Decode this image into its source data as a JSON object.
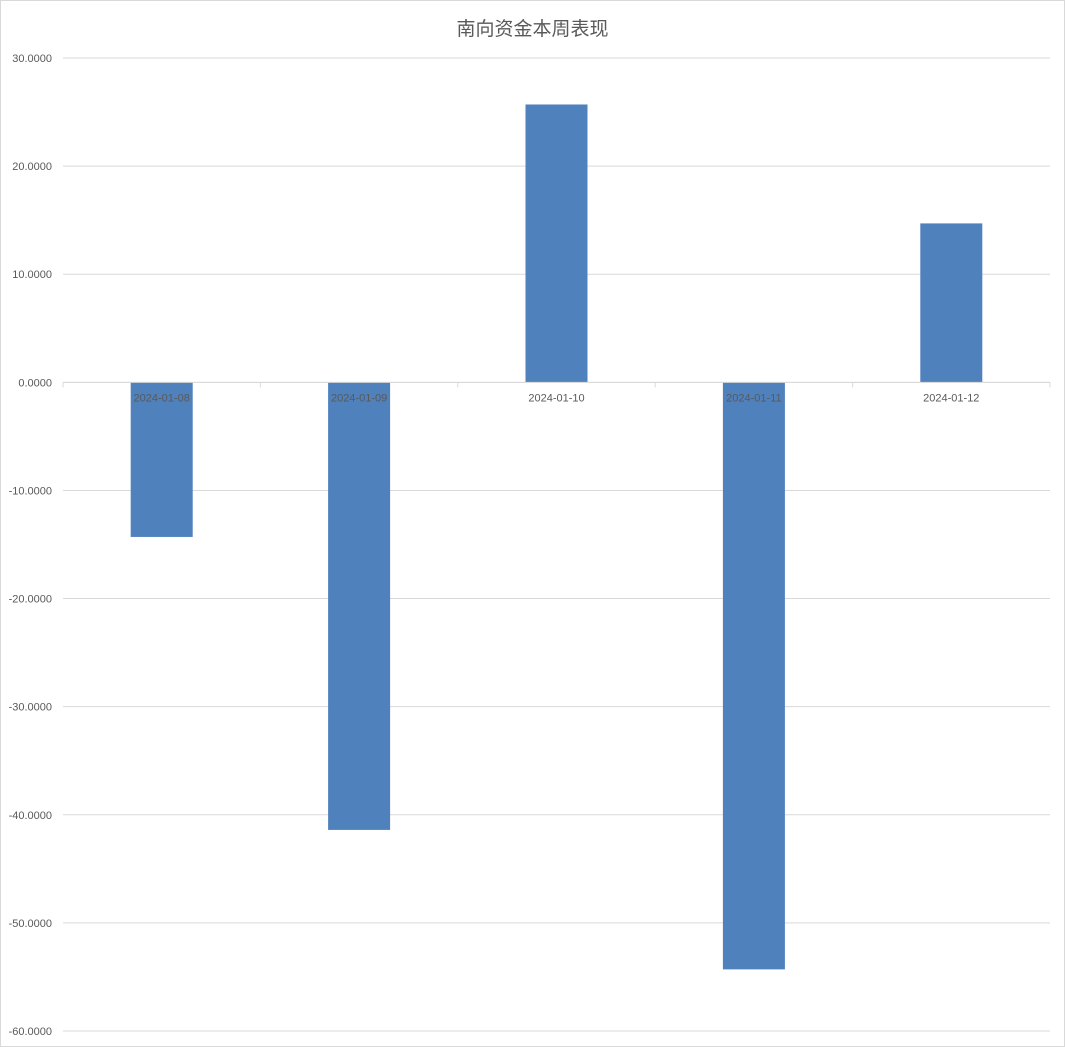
{
  "chart_data": {
    "type": "bar",
    "title": "南向资金本周表现",
    "categories": [
      "2024-01-08",
      "2024-01-09",
      "2024-01-10",
      "2024-01-11",
      "2024-01-12"
    ],
    "values": [
      -14.3,
      -41.4,
      25.7,
      -54.3,
      14.7
    ],
    "ylim": [
      -60,
      30
    ],
    "yticks": [
      "30.0000",
      "20.0000",
      "10.0000",
      "0.0000",
      "-10.0000",
      "-20.0000",
      "-30.0000",
      "-40.0000",
      "-50.0000",
      "-60.0000"
    ],
    "xlabel": "",
    "ylabel": "",
    "grid": true,
    "legend": "none",
    "colors": {
      "bar": "#4f81bd",
      "grid": "#d9d9d9",
      "text": "#595959"
    }
  }
}
